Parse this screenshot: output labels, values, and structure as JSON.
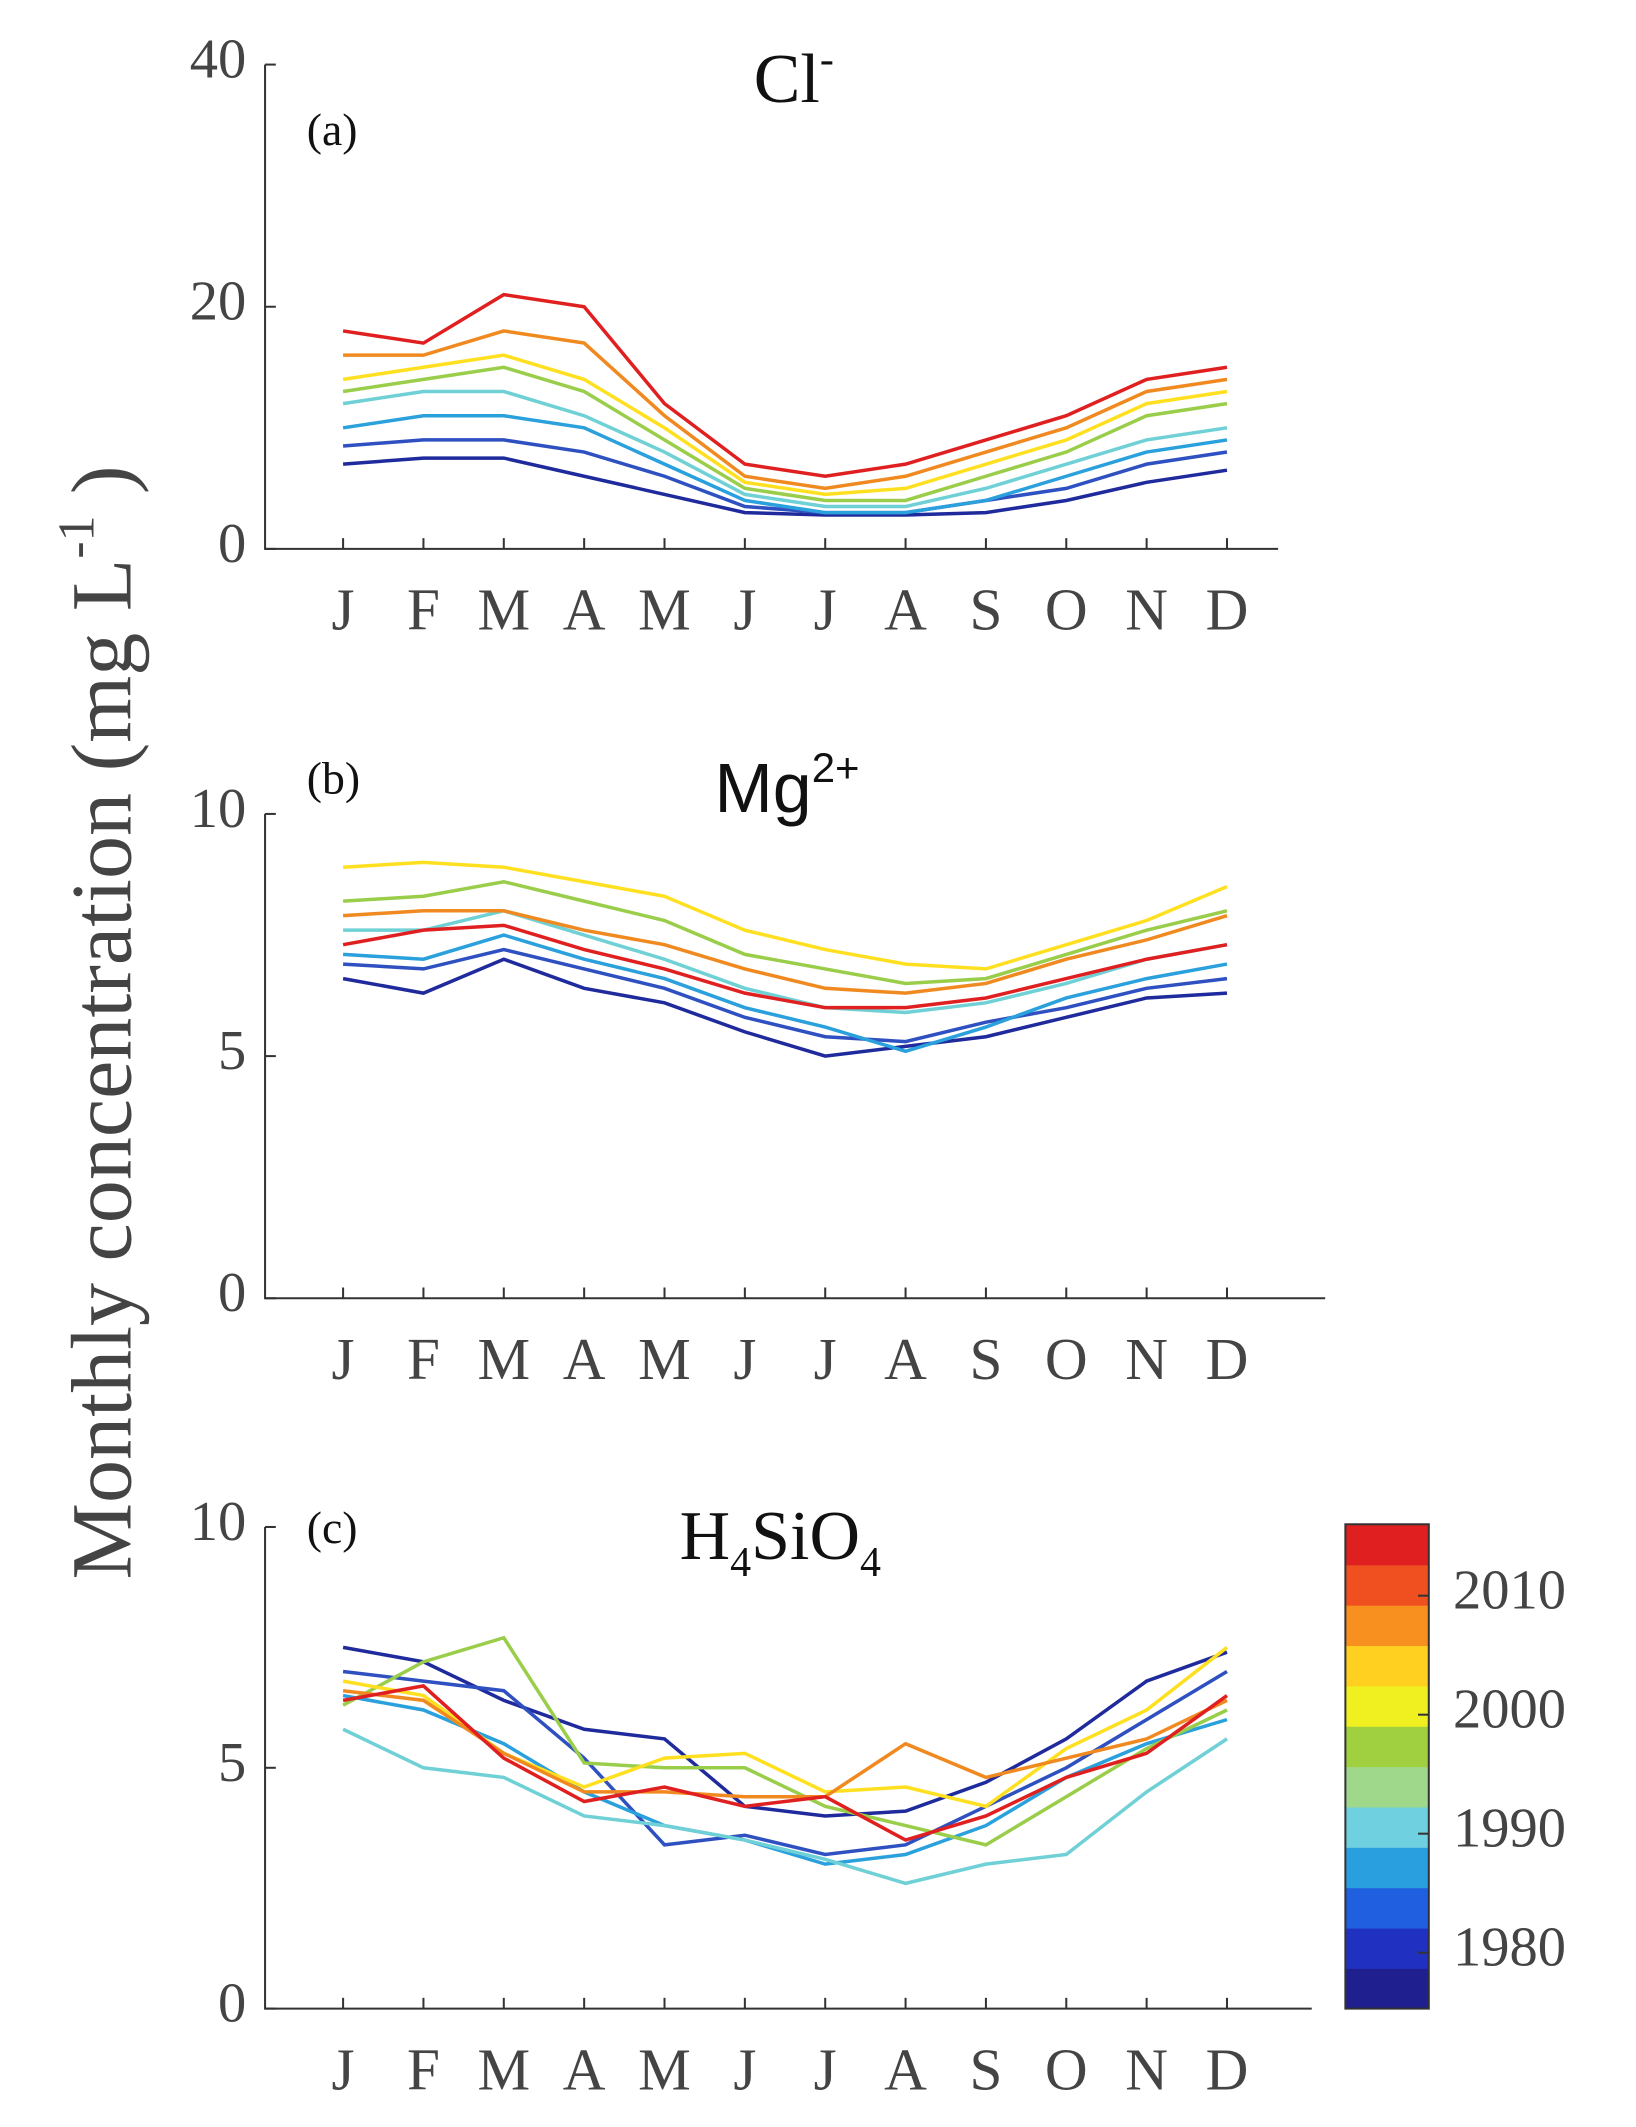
{
  "ylabel": [
    {
      "text": "Monthly concentration (mg L"
    },
    {
      "text": "-1",
      "sup": true
    },
    {
      "text": " )"
    }
  ],
  "chart_data": [
    {
      "type": "line",
      "panel_label": "(a)",
      "title": [
        {
          "text": "Cl"
        },
        {
          "text": "-",
          "sup": true
        }
      ],
      "categories": [
        "J",
        "F",
        "M",
        "A",
        "M",
        "J",
        "J",
        "A",
        "S",
        "O",
        "N",
        "D"
      ],
      "ylim": [
        0,
        40
      ],
      "yticks": [
        0,
        20,
        40
      ],
      "series": [
        {
          "color": "#1f2a9c",
          "values": [
            7,
            7.5,
            7.5,
            6,
            4.5,
            3,
            2.8,
            2.8,
            3,
            4,
            5.5,
            6.5
          ]
        },
        {
          "color": "#2f50c0",
          "values": [
            8.5,
            9,
            9,
            8,
            6,
            3.5,
            3,
            3,
            4,
            5,
            7,
            8
          ]
        },
        {
          "color": "#2aa0dc",
          "values": [
            10,
            11,
            11,
            10,
            7,
            4,
            3,
            3,
            4,
            6,
            8,
            9
          ]
        },
        {
          "color": "#6fd0d6",
          "values": [
            12,
            13,
            13,
            11,
            8,
            4.5,
            3.5,
            3.5,
            5,
            7,
            9,
            10
          ]
        },
        {
          "color": "#9acd4a",
          "values": [
            13,
            14,
            15,
            13,
            9,
            5,
            4,
            4,
            6,
            8,
            11,
            12
          ]
        },
        {
          "color": "#ffe020",
          "values": [
            14,
            15,
            16,
            14,
            10,
            5.5,
            4.5,
            5,
            7,
            9,
            12,
            13
          ]
        },
        {
          "color": "#f08a20",
          "values": [
            16,
            16,
            18,
            17,
            11,
            6,
            5,
            6,
            8,
            10,
            13,
            14
          ]
        },
        {
          "color": "#e02020",
          "values": [
            18,
            17,
            21,
            20,
            12,
            7,
            6,
            7,
            9,
            11,
            14,
            15
          ]
        }
      ]
    },
    {
      "type": "line",
      "panel_label": "(b)",
      "title": [
        {
          "text": "Mg"
        },
        {
          "text": "2+",
          "sup": true
        }
      ],
      "categories": [
        "J",
        "F",
        "M",
        "A",
        "M",
        "J",
        "J",
        "A",
        "S",
        "O",
        "N",
        "D"
      ],
      "ylim": [
        0,
        10
      ],
      "yticks": [
        0,
        5,
        10
      ],
      "series": [
        {
          "color": "#1f2a9c",
          "values": [
            6.6,
            6.3,
            7,
            6.4,
            6.1,
            5.5,
            5,
            5.2,
            5.4,
            5.8,
            6.2,
            6.3
          ]
        },
        {
          "color": "#2f50c0",
          "values": [
            6.9,
            6.8,
            7.2,
            6.8,
            6.4,
            5.8,
            5.4,
            5.3,
            5.7,
            6,
            6.4,
            6.6
          ]
        },
        {
          "color": "#2aa0dc",
          "values": [
            7.1,
            7,
            7.5,
            7,
            6.6,
            6,
            5.6,
            5.1,
            5.6,
            6.2,
            6.6,
            6.9
          ]
        },
        {
          "color": "#6fd0d6",
          "values": [
            7.6,
            7.6,
            8,
            7.5,
            7,
            6.4,
            6,
            5.9,
            6.1,
            6.5,
            7,
            7.3
          ]
        },
        {
          "color": "#9acd4a",
          "values": [
            8.2,
            8.3,
            8.6,
            8.2,
            7.8,
            7.1,
            6.8,
            6.5,
            6.6,
            7.1,
            7.6,
            8
          ]
        },
        {
          "color": "#ffe020",
          "values": [
            8.9,
            9,
            8.9,
            8.6,
            8.3,
            7.6,
            7.2,
            6.9,
            6.8,
            7.3,
            7.8,
            8.5
          ]
        },
        {
          "color": "#f08a20",
          "values": [
            7.9,
            8,
            8,
            7.6,
            7.3,
            6.8,
            6.4,
            6.3,
            6.5,
            7,
            7.4,
            7.9
          ]
        },
        {
          "color": "#e02020",
          "values": [
            7.3,
            7.6,
            7.7,
            7.2,
            6.8,
            6.3,
            6,
            6,
            6.2,
            6.6,
            7,
            7.3
          ]
        }
      ]
    },
    {
      "type": "line",
      "panel_label": "(c)",
      "title": [
        {
          "text": "H"
        },
        {
          "text": "4",
          "sub": true
        },
        {
          "text": "SiO"
        },
        {
          "text": "4",
          "sub": true
        }
      ],
      "categories": [
        "J",
        "F",
        "M",
        "A",
        "M",
        "J",
        "J",
        "A",
        "S",
        "O",
        "N",
        "D"
      ],
      "ylim": [
        0,
        10
      ],
      "yticks": [
        0,
        5,
        10
      ],
      "series": [
        {
          "color": "#1f2a9c",
          "values": [
            7.5,
            7.2,
            6.4,
            5.8,
            5.6,
            4.2,
            4,
            4.1,
            4.7,
            5.6,
            6.8,
            7.4
          ]
        },
        {
          "color": "#2f50c0",
          "values": [
            7,
            6.8,
            6.6,
            5.2,
            3.4,
            3.6,
            3.2,
            3.4,
            4.2,
            5,
            6,
            7
          ]
        },
        {
          "color": "#2aa0dc",
          "values": [
            6.5,
            6.2,
            5.5,
            4.5,
            3.8,
            3.5,
            3,
            3.2,
            3.8,
            4.8,
            5.5,
            6
          ]
        },
        {
          "color": "#6fd0d6",
          "values": [
            5.8,
            5,
            4.8,
            4,
            3.8,
            3.5,
            3.1,
            2.6,
            3,
            3.2,
            4.5,
            5.6
          ]
        },
        {
          "color": "#9acd4a",
          "values": [
            6.3,
            7.2,
            7.7,
            5.1,
            5,
            5,
            4.2,
            3.8,
            3.4,
            4.4,
            5.4,
            6.2
          ]
        },
        {
          "color": "#ffe020",
          "values": [
            6.8,
            6.5,
            5.3,
            4.6,
            5.2,
            5.3,
            4.5,
            4.6,
            4.2,
            5.4,
            6.2,
            7.5
          ]
        },
        {
          "color": "#f08a20",
          "values": [
            6.6,
            6.4,
            5.3,
            4.5,
            4.5,
            4.4,
            4.4,
            5.5,
            4.8,
            5.2,
            5.6,
            6.4
          ]
        },
        {
          "color": "#e02020",
          "values": [
            6.4,
            6.7,
            5.2,
            4.3,
            4.6,
            4.2,
            4.4,
            3.5,
            4,
            4.8,
            5.3,
            6.5
          ]
        }
      ]
    }
  ],
  "colorbar": {
    "clim": [
      1975.3,
      2016
    ],
    "ticks": [
      1980,
      1990,
      2000,
      2010
    ],
    "colormap": [
      "#1f1f8f",
      "#2030c0",
      "#2060e0",
      "#2a9fe0",
      "#6fd0e0",
      "#9fd88a",
      "#a0d040",
      "#f0f020",
      "#ffd020",
      "#f89020",
      "#f05020",
      "#e02020"
    ]
  }
}
